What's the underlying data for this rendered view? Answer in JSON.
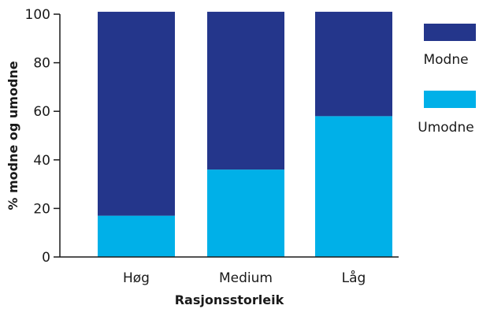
{
  "chart_data": {
    "type": "bar",
    "stacked": true,
    "title": "",
    "categories": [
      "Høg",
      "Medium",
      "Låg"
    ],
    "series": [
      {
        "name": "Umodne",
        "values": [
          17,
          36,
          58
        ],
        "color": "#00b0e8"
      },
      {
        "name": "Modne",
        "values": [
          84,
          65,
          43
        ],
        "color": "#24368b"
      }
    ],
    "xlabel": "Rasjonsstorleik",
    "ylabel": "% modne og umodne",
    "ylim": [
      0,
      100
    ],
    "yticks": [
      0,
      20,
      40,
      60,
      80,
      100
    ],
    "grid": false,
    "legend": {
      "placement": "right",
      "items": [
        "Modne",
        "Umodne"
      ]
    }
  }
}
